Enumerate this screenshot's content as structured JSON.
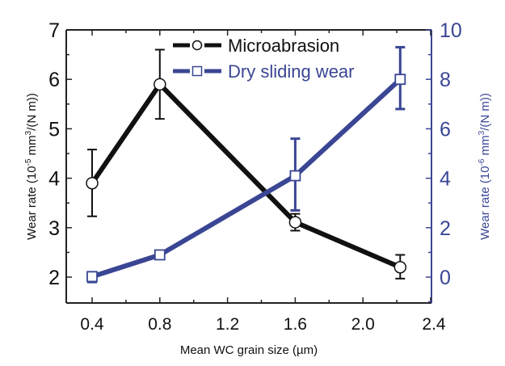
{
  "chart_data": {
    "type": "line",
    "title": "",
    "xlabel": "Mean WC grain size (µm)",
    "ylabel_left": "Wear rate (10⁻⁵ mm³/(N m))",
    "ylabel_right": "Wear rate (10⁻⁶ mm³/(N m))",
    "xlim": [
      0.25,
      2.4
    ],
    "ylim_left": [
      1.5,
      7
    ],
    "ylim_right": [
      -1,
      10
    ],
    "x_ticks": [
      "0.4",
      "0.8",
      "1.2",
      "1.6",
      "2.0",
      "2.4"
    ],
    "x_tick_values": [
      0.4,
      0.8,
      1.2,
      1.6,
      2.0,
      2.4
    ],
    "y_left_ticks": [
      "2",
      "3",
      "4",
      "5",
      "6",
      "7"
    ],
    "y_left_tick_values": [
      2,
      3,
      4,
      5,
      6,
      7
    ],
    "y_right_ticks": [
      "0",
      "2",
      "4",
      "6",
      "8",
      "10"
    ],
    "y_right_tick_values": [
      0,
      2,
      4,
      6,
      8,
      10
    ],
    "legend_position": "top-center",
    "grid": false,
    "series": [
      {
        "name": "Microabrasion",
        "axis": "left",
        "color": "#111111",
        "marker": "circle",
        "x": [
          0.4,
          0.8,
          1.6,
          2.22
        ],
        "y": [
          3.9,
          5.9,
          3.11,
          2.2
        ],
        "err_low": [
          3.23,
          5.2,
          2.94,
          1.97
        ],
        "err_high": [
          4.58,
          6.6,
          3.28,
          2.45
        ]
      },
      {
        "name": "Dry sliding wear",
        "axis": "right",
        "color": "#3a4694",
        "marker": "square",
        "x": [
          0.4,
          0.8,
          1.6,
          2.22
        ],
        "y": [
          0.02,
          0.9,
          4.1,
          8.0
        ],
        "err_low": [
          -0.2,
          0.75,
          2.7,
          6.8
        ],
        "err_high": [
          0.2,
          1.05,
          5.6,
          9.3
        ]
      }
    ]
  }
}
